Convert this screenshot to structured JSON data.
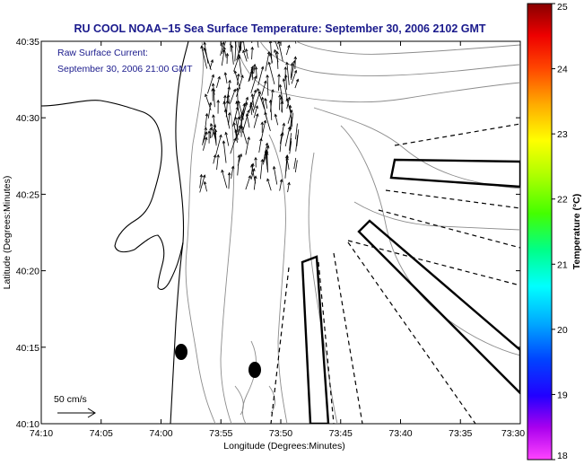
{
  "title": "RU COOL  NOAA−15  Sea Surface Temperature:  September 30, 2006 2102 GMT",
  "inset": {
    "line1": "Raw Surface Current:",
    "line2": "September 30, 2006 21:00 GMT"
  },
  "scale_label": "50 cm/s",
  "x_axis": {
    "label": "Longitude (Degrees:Minutes)",
    "ticks": [
      "74:10",
      "74:05",
      "74:00",
      "73:55",
      "73:50",
      "73:45",
      "73:40",
      "73:35",
      "73:30"
    ]
  },
  "y_axis": {
    "label": "Latitude (Degrees:Minutes)",
    "ticks": [
      "40:35",
      "40:30",
      "40:25",
      "40:20",
      "40:15",
      "40:10"
    ]
  },
  "colorbar": {
    "label": "Temperature (°C)",
    "ticks": [
      "25",
      "24",
      "23",
      "22",
      "21",
      "20",
      "19",
      "18"
    ],
    "range": [
      18,
      25
    ],
    "colors": [
      "#ff44ff",
      "#9900ee",
      "#0000ff",
      "#00aaff",
      "#00ffff",
      "#00ff66",
      "#66ff00",
      "#ffff00",
      "#ffaa00",
      "#ff4400",
      "#ee0000",
      "#880000"
    ]
  }
}
